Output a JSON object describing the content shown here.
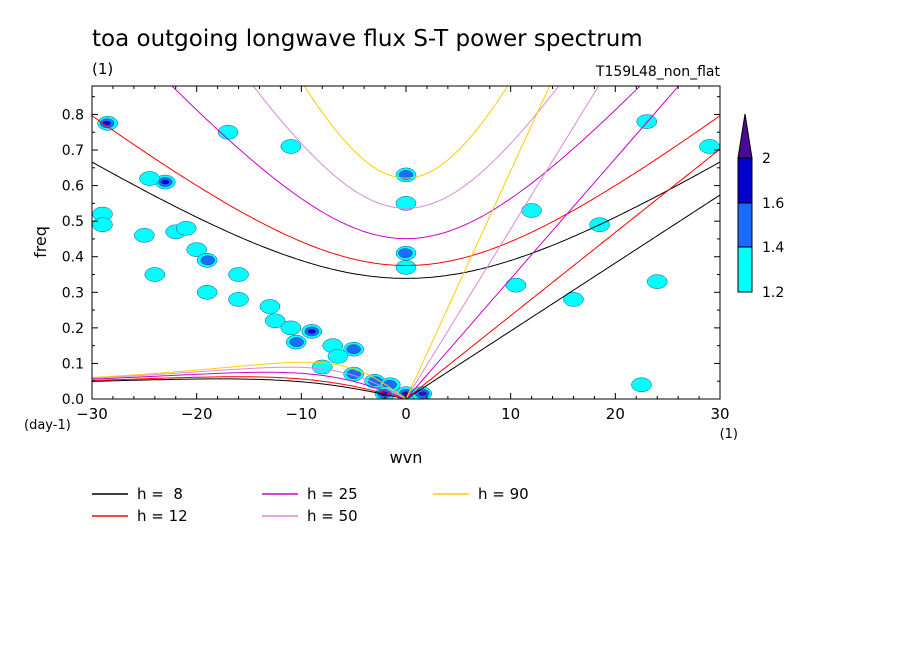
{
  "chart_data": {
    "type": "heatmap",
    "title": "toa outgoing longwave flux S-T power spectrum",
    "subtitle_left": "(1)",
    "subtitle_right": "T159L48_non_flat",
    "xlabel": "wvn",
    "ylabel": "freq",
    "x_unit": "(1)",
    "y_unit": "(day-1)",
    "xlim": [
      -30,
      30
    ],
    "ylim": [
      0,
      0.88
    ],
    "xticks": [
      -30,
      -20,
      -10,
      0,
      10,
      20,
      30
    ],
    "xtick_labels": [
      "−30",
      "−20",
      "−10",
      "0",
      "10",
      "20",
      "30"
    ],
    "yticks": [
      0,
      0.1,
      0.2,
      0.3,
      0.4,
      0.5,
      0.6,
      0.7,
      0.8
    ],
    "ytick_labels": [
      "0.0",
      "0.1",
      "0.2",
      "0.3",
      "0.4",
      "0.5",
      "0.6",
      "0.7",
      "0.8"
    ],
    "colorbar": {
      "levels": [
        1.2,
        1.4,
        1.6,
        2
      ],
      "labels": [
        "1.2",
        "1.4",
        "1.6",
        "2"
      ],
      "colors": [
        "#00ffff",
        "#1a6bff",
        "#0000cc",
        "#4a0a96"
      ]
    },
    "dispersion_curves": [
      {
        "name": "h =  8",
        "h": 8,
        "color": "#000000"
      },
      {
        "name": "h = 12",
        "h": 12,
        "color": "#ff0000"
      },
      {
        "name": "h = 25",
        "h": 25,
        "color": "#cc00cc"
      },
      {
        "name": "h = 50",
        "h": 50,
        "color": "#dd88dd"
      },
      {
        "name": "h = 90",
        "h": 90,
        "color": "#ffcc00"
      }
    ],
    "legend_position": "bottom",
    "contour_blobs": [
      {
        "x": -28.5,
        "y": 0.775,
        "level": 3
      },
      {
        "x": -23,
        "y": 0.61,
        "level": 3
      },
      {
        "x": -24.5,
        "y": 0.62,
        "level": 1
      },
      {
        "x": -29,
        "y": 0.52,
        "level": 1
      },
      {
        "x": -29,
        "y": 0.49,
        "level": 1
      },
      {
        "x": -25,
        "y": 0.46,
        "level": 1
      },
      {
        "x": -22,
        "y": 0.47,
        "level": 1
      },
      {
        "x": -20,
        "y": 0.42,
        "level": 1
      },
      {
        "x": -19,
        "y": 0.39,
        "level": 2
      },
      {
        "x": -24,
        "y": 0.35,
        "level": 1
      },
      {
        "x": -19,
        "y": 0.3,
        "level": 1
      },
      {
        "x": -16,
        "y": 0.35,
        "level": 1
      },
      {
        "x": -16,
        "y": 0.28,
        "level": 1
      },
      {
        "x": -13,
        "y": 0.26,
        "level": 1
      },
      {
        "x": -12.5,
        "y": 0.22,
        "level": 1
      },
      {
        "x": -11,
        "y": 0.2,
        "level": 1
      },
      {
        "x": -9,
        "y": 0.19,
        "level": 3
      },
      {
        "x": -10.5,
        "y": 0.16,
        "level": 2
      },
      {
        "x": -7,
        "y": 0.15,
        "level": 1
      },
      {
        "x": -5,
        "y": 0.14,
        "level": 2
      },
      {
        "x": -6.5,
        "y": 0.12,
        "level": 1
      },
      {
        "x": -8,
        "y": 0.09,
        "level": 1
      },
      {
        "x": -5,
        "y": 0.07,
        "level": 2
      },
      {
        "x": -3,
        "y": 0.05,
        "level": 2
      },
      {
        "x": -1.5,
        "y": 0.04,
        "level": 2
      },
      {
        "x": 0,
        "y": 0.015,
        "level": 4
      },
      {
        "x": 1.5,
        "y": 0.015,
        "level": 4
      },
      {
        "x": -2,
        "y": 0.015,
        "level": 3
      },
      {
        "x": 0,
        "y": 0.63,
        "level": 2
      },
      {
        "x": 0,
        "y": 0.55,
        "level": 1
      },
      {
        "x": 0,
        "y": 0.41,
        "level": 2
      },
      {
        "x": 0,
        "y": 0.37,
        "level": 1
      },
      {
        "x": -11,
        "y": 0.71,
        "level": 1
      },
      {
        "x": -17,
        "y": 0.75,
        "level": 1
      },
      {
        "x": -21,
        "y": 0.48,
        "level": 1
      },
      {
        "x": 10.5,
        "y": 0.32,
        "level": 1
      },
      {
        "x": 16,
        "y": 0.28,
        "level": 1
      },
      {
        "x": 22.5,
        "y": 0.04,
        "level": 1
      },
      {
        "x": 24,
        "y": 0.33,
        "level": 1
      },
      {
        "x": 18.5,
        "y": 0.49,
        "level": 1
      },
      {
        "x": 23,
        "y": 0.78,
        "level": 1
      },
      {
        "x": 29,
        "y": 0.71,
        "level": 1
      },
      {
        "x": 12,
        "y": 0.53,
        "level": 1
      }
    ]
  }
}
